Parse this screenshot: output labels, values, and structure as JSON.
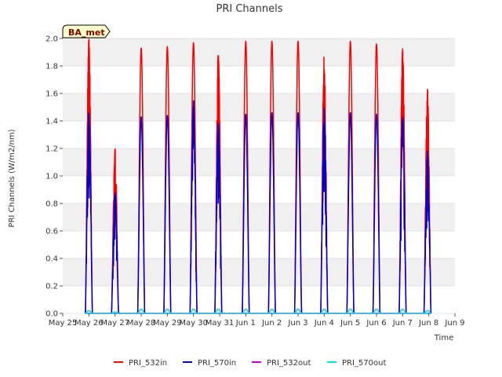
{
  "chart_data": {
    "type": "line",
    "title": "PRI Channels",
    "xlabel": "Time",
    "ylabel": "PRI Channels (W/m2/nm)",
    "badge": "BA_met",
    "ylim": [
      0,
      2.0
    ],
    "xlim": [
      0,
      15
    ],
    "yticks": [
      0.0,
      0.2,
      0.4,
      0.6,
      0.8,
      1.0,
      1.2,
      1.4,
      1.6,
      1.8,
      2.0
    ],
    "xticks": [
      {
        "x": 0,
        "label": "May 25"
      },
      {
        "x": 1,
        "label": "May 26"
      },
      {
        "x": 2,
        "label": "May 27"
      },
      {
        "x": 3,
        "label": "May 28"
      },
      {
        "x": 4,
        "label": "May 29"
      },
      {
        "x": 5,
        "label": "May 30"
      },
      {
        "x": 6,
        "label": "May 31"
      },
      {
        "x": 7,
        "label": "Jun 1"
      },
      {
        "x": 8,
        "label": "Jun 2"
      },
      {
        "x": 9,
        "label": "Jun 3"
      },
      {
        "x": 10,
        "label": "Jun 4"
      },
      {
        "x": 11,
        "label": "Jun 5"
      },
      {
        "x": 12,
        "label": "Jun 6"
      },
      {
        "x": 13,
        "label": "Jun 7"
      },
      {
        "x": 14,
        "label": "Jun 8"
      },
      {
        "x": 15,
        "label": "Jun 9"
      }
    ],
    "day_centers": [
      1.0,
      2.0,
      3.0,
      4.0,
      5.0,
      5.95,
      7.0,
      8.0,
      9.0,
      10.0,
      11.0,
      12.0,
      13.0,
      13.95
    ],
    "day_width": 0.27,
    "series": [
      {
        "name": "PRI_532in",
        "color": "#ff0000",
        "daily_peaks": [
          2.0,
          1.2,
          1.93,
          1.94,
          1.97,
          1.89,
          1.98,
          1.98,
          1.98,
          1.88,
          1.98,
          1.96,
          1.94,
          1.63
        ],
        "noisy_days": [
          0,
          1,
          5,
          9,
          12,
          13
        ]
      },
      {
        "name": "PRI_570in",
        "color": "#0000cc",
        "daily_peaks": [
          1.46,
          0.88,
          1.43,
          1.44,
          1.55,
          1.39,
          1.45,
          1.46,
          1.46,
          1.5,
          1.46,
          1.45,
          1.43,
          1.18
        ],
        "noisy_days": [
          0,
          1,
          4,
          5,
          9,
          12,
          13
        ]
      },
      {
        "name": "PRI_532out",
        "color": "#cc00cc",
        "daily_peaks": [
          0.02,
          0.01,
          0.03,
          0.03,
          0.03,
          0.03,
          0.03,
          0.03,
          0.03,
          0.03,
          0.03,
          0.03,
          0.03,
          0.02
        ],
        "noisy_days": []
      },
      {
        "name": "PRI_570out",
        "color": "#00e5ee",
        "daily_peaks": [
          0.02,
          0.01,
          0.03,
          0.03,
          0.03,
          0.03,
          0.03,
          0.03,
          0.03,
          0.03,
          0.03,
          0.03,
          0.03,
          0.02
        ],
        "noisy_days": []
      }
    ],
    "grid": "horizontal bands",
    "legend_position": "bottom"
  }
}
